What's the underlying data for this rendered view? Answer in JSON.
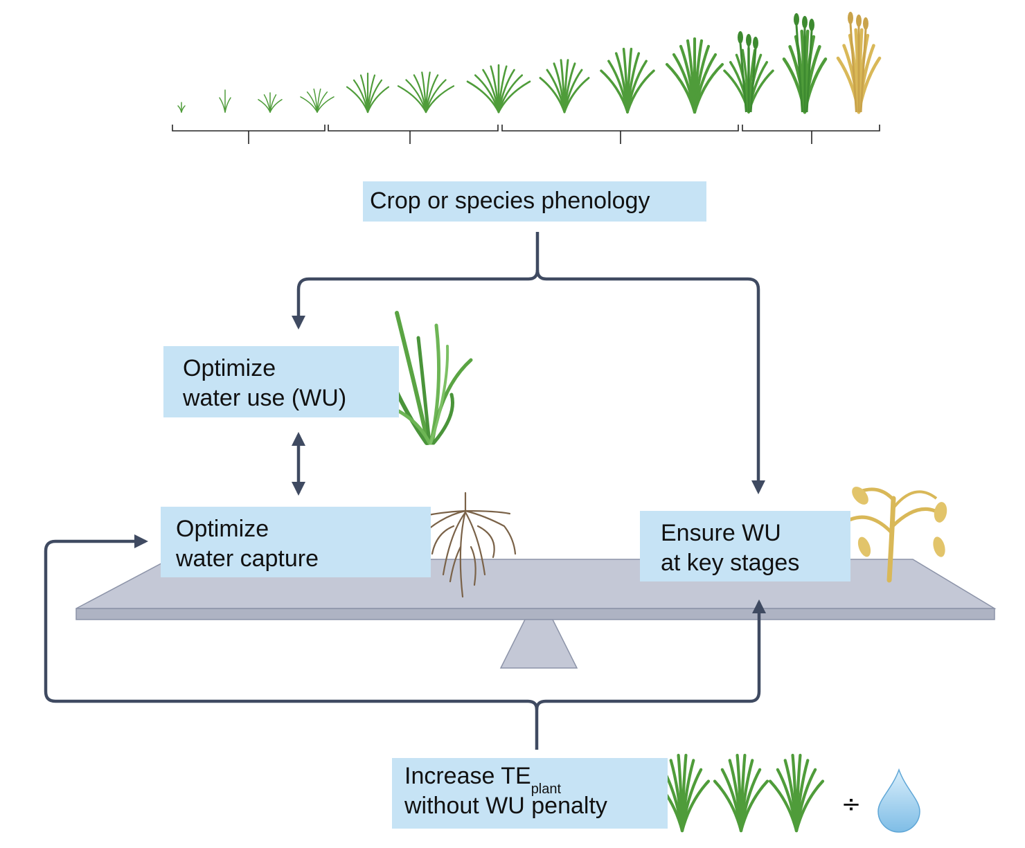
{
  "boxes": {
    "phenology": "Crop or species phenology",
    "water_use": [
      "Optimize",
      "water use (WU)"
    ],
    "water_capture": [
      "Optimize",
      "water capture"
    ],
    "key_stages": [
      "Ensure WU",
      "at key stages"
    ],
    "te": {
      "line1_main": "Increase TE",
      "line1_sub": "plant",
      "line2": "without WU penalty"
    }
  },
  "symbols": {
    "divide": "÷"
  },
  "icons": {
    "growth_stages": "crop-growth-stages-icon",
    "grass": "grass-plant-icon",
    "roots": "root-system-icon",
    "mature_crop": "mature-crop-icon",
    "seedlings": "seedling-icon",
    "water_drop": "water-drop-icon"
  },
  "colors": {
    "box_fill": "#c6e3f5",
    "arrow": "#3f4a61",
    "balance": "#c4c8d6",
    "plant_green": "#4f9c3a",
    "mature_gold": "#d9b858",
    "root_brown": "#7a6248",
    "water": "#9fcfee"
  }
}
